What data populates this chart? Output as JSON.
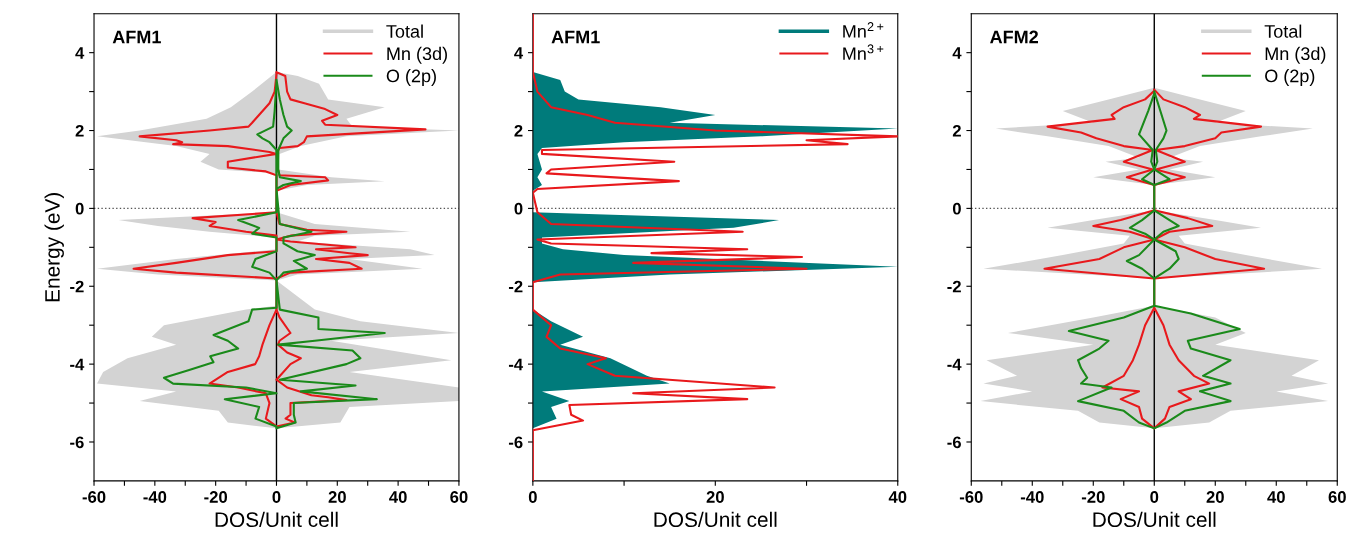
{
  "chart_data": [
    {
      "type": "line",
      "grid": false,
      "title": "AFM1",
      "xlabel": "DOS/Unit cell",
      "ylabel": "Energy (eV)",
      "xlim": [
        -60,
        60
      ],
      "ylim": [
        -7,
        5
      ],
      "xticks": [
        -60,
        {
          "value": -50,
          "label": null
        },
        -40,
        {
          "value": -30,
          "label": null
        },
        -20,
        {
          "value": -10,
          "label": null
        },
        0,
        {
          "value": 10,
          "label": null
        },
        20,
        {
          "value": 30,
          "label": null
        },
        40,
        {
          "value": 50,
          "label": null
        },
        60
      ],
      "yticks": [
        -6,
        {
          "value": -5,
          "label": null
        },
        -4,
        {
          "value": -3,
          "label": null
        },
        -2,
        {
          "value": -1,
          "label": null
        },
        0,
        {
          "value": 1,
          "label": null
        },
        2,
        {
          "value": 3,
          "label": null
        },
        4
      ],
      "legend": "top right",
      "ref_lines": [
        {
          "axis": "x",
          "value": 0,
          "color": "#000000",
          "line_style": "solid"
        },
        {
          "axis": "y",
          "value": 0,
          "color": "#555555",
          "line_style": "dotted"
        }
      ],
      "series": [
        {
          "name": "Total",
          "type": "area",
          "color": "#d3d3d3",
          "values": [
            3.5,
            3.4,
            3.2,
            2.8,
            2.6,
            2.3,
            2.1,
            2.0,
            1.85,
            1.6,
            1.4,
            1.0,
            0.8,
            0.7,
            0.6,
            0.45,
            -0.1,
            -0.4,
            -0.6,
            -0.7,
            -0.85,
            -1.05,
            -1.2,
            -1.3,
            -1.55,
            -1.7,
            -1.85,
            -2.6,
            -2.9,
            -3.2,
            -3.4,
            -3.9,
            -4.2,
            -4.6,
            -4.95,
            -5.1,
            -5.5,
            -5.65,
            -5.5,
            -5.2,
            -4.95,
            -4.7,
            -4.5,
            -4.2,
            -3.85,
            -3.5,
            -3.3,
            -3.0,
            -2.6,
            -2.5,
            -1.85,
            -1.7,
            -1.55,
            -1.3,
            -1.05,
            -0.75,
            -0.6,
            -0.45,
            -0.3,
            -0.1,
            0.9,
            1.0,
            1.2,
            1.4,
            1.6,
            1.85,
            2.0,
            2.3,
            2.6,
            3.0,
            3.5
          ],
          "x": [
            0,
            7,
            14,
            17,
            35.6,
            23,
            25,
            60,
            23,
            8,
            1,
            0.6,
            18,
            35.6,
            10,
            0,
            0,
            12.6,
            44,
            12.6,
            6.9,
            44,
            52,
            24,
            48,
            6.9,
            0,
            12.6,
            27.6,
            60,
            18,
            57.5,
            24,
            60,
            60,
            24,
            21,
            0,
            -16,
            -19,
            -45,
            -33,
            -59,
            -57,
            -49,
            -33,
            -41,
            -37,
            -10,
            0,
            0,
            -39,
            -59,
            -33,
            0,
            0,
            -22,
            -39,
            -52,
            0,
            0,
            -19,
            -25,
            -22,
            -33,
            -59,
            -45,
            -23,
            -15,
            -8,
            0
          ]
        },
        {
          "name": "Mn (3d)",
          "color": "#e8191c",
          "values": [
            3.5,
            3.4,
            3.0,
            2.8,
            2.7,
            2.55,
            2.4,
            2.25,
            2.15,
            2.03,
            1.85,
            1.7,
            1.6,
            1.55,
            1.4,
            1.0,
            0.85,
            0.8,
            0.72,
            0.6,
            0.45,
            -0.1,
            -0.4,
            -0.55,
            -0.6,
            -0.7,
            -0.8,
            -0.85,
            -1.0,
            -1.05,
            -1.15,
            -1.2,
            -1.3,
            -1.4,
            -1.55,
            -1.65,
            -1.8,
            -2.6,
            -2.8,
            -3.2,
            -3.4,
            -3.5,
            -3.7,
            -3.85,
            -4.0,
            -4.4,
            -4.6,
            -4.8,
            -4.85,
            -4.92,
            -5.0,
            -5.3,
            -5.4,
            -5.5,
            -5.6,
            -5.4,
            -5.0,
            -4.75,
            -4.6,
            -4.5,
            -4.2,
            -4.0,
            -3.8,
            -3.5,
            -3.0,
            -2.6,
            -1.8,
            -1.65,
            -1.55,
            -1.4,
            -1.2,
            -1.1,
            -0.7,
            -0.6,
            -0.45,
            -0.35,
            -0.25,
            -0.1,
            0.85,
            0.95,
            1.05,
            1.2,
            1.4,
            1.45,
            1.6,
            1.65,
            1.7,
            1.75,
            1.85,
            2.0,
            2.1,
            2.2,
            2.7,
            3.0,
            3.45
          ],
          "x": [
            0,
            2.9,
            3.5,
            4.6,
            9.2,
            16,
            20,
            15,
            16,
            49,
            10,
            9,
            7,
            1,
            0,
            0.5,
            1,
            16,
            17,
            4.6,
            0,
            0,
            1,
            10,
            23,
            4.6,
            0,
            4.6,
            26,
            13,
            24,
            30,
            13,
            24,
            28,
            4.6,
            0,
            0,
            1,
            4.6,
            1,
            0.5,
            3.5,
            8,
            4.6,
            0,
            3.5,
            11.5,
            17,
            23,
            4.6,
            4.6,
            3,
            6,
            0,
            -3.5,
            -2.3,
            -3.5,
            -12.6,
            -22,
            -16,
            -7,
            -5.7,
            -4.6,
            -2.3,
            0,
            0,
            -33,
            -47,
            -33,
            -16,
            0,
            0,
            -10,
            -22,
            -20,
            -27.6,
            0,
            0,
            -3.5,
            -16,
            -16,
            0,
            -2.3,
            -16,
            -34,
            -31,
            -33,
            -45,
            -22,
            -9.2,
            -8,
            -2.3,
            -0.6,
            0
          ]
        },
        {
          "name": "O (2p)",
          "color": "#1a8a1a",
          "values": [
            3.3,
            2.8,
            2.4,
            2.1,
            2.0,
            1.8,
            1.5,
            1.0,
            0.8,
            0.7,
            0.6,
            0.5,
            -0.4,
            -0.6,
            -0.75,
            -0.9,
            -1.1,
            -1.2,
            -1.35,
            -1.55,
            -1.65,
            -1.85,
            -2.6,
            -2.8,
            -3.1,
            -3.2,
            -3.4,
            -3.5,
            -3.65,
            -3.85,
            -4.0,
            -4.4,
            -4.55,
            -4.7,
            -4.9,
            -5.0,
            -5.3,
            -5.5,
            -5.65,
            -5.6,
            -5.4,
            -5.1,
            -4.9,
            -4.75,
            -4.6,
            -4.5,
            -4.35,
            -4.15,
            -3.95,
            -3.8,
            -3.6,
            -3.4,
            -3.25,
            -2.9,
            -2.6,
            -2.55,
            -1.85,
            -1.65,
            -1.5,
            -1.3,
            -1.1,
            -0.75,
            -0.65,
            -0.5,
            -0.3,
            -0.1,
            1.5,
            1.7,
            1.8,
            1.9,
            2.1,
            2.5,
            3.25
          ],
          "x": [
            0,
            1.1,
            2.3,
            3.5,
            5,
            2.3,
            0.6,
            0.6,
            1.1,
            8,
            2.3,
            0,
            1.1,
            11.5,
            2.3,
            2.3,
            6.9,
            12.6,
            5.7,
            10,
            2.3,
            0,
            1.1,
            13.8,
            13.8,
            35.6,
            12.6,
            0.6,
            25,
            27.6,
            23,
            1.1,
            26,
            8,
            33,
            5.7,
            5.7,
            6.3,
            0,
            0,
            -6.9,
            -5.7,
            -17,
            0,
            -10,
            -34,
            -37,
            -28.7,
            -20.7,
            -21.8,
            -12.6,
            -16,
            -20.7,
            -9.2,
            -8,
            0,
            0,
            -2.3,
            -8,
            -6.9,
            0,
            0,
            -8,
            -5.7,
            -12.6,
            0,
            0,
            -2.3,
            -4.6,
            -6.3,
            -1.1,
            -0.6,
            0
          ]
        }
      ]
    },
    {
      "type": "line",
      "grid": false,
      "title": "AFM1",
      "xlabel": "DOS/Unit cell",
      "xlim": [
        0,
        40
      ],
      "ylim": [
        -7,
        5
      ],
      "xticks": [
        0,
        {
          "value": 10,
          "label": null
        },
        20,
        {
          "value": 30,
          "label": null
        },
        40
      ],
      "yticks": [
        -6,
        {
          "value": -5,
          "label": null
        },
        -4,
        {
          "value": -3,
          "label": null
        },
        -2,
        {
          "value": -1,
          "label": null
        },
        0,
        {
          "value": 1,
          "label": null
        },
        2,
        {
          "value": 3,
          "label": null
        },
        4
      ],
      "legend": "top right",
      "ref_lines": [
        {
          "axis": "y",
          "value": 0,
          "color": "#555555",
          "line_style": "dotted"
        }
      ],
      "series": [
        {
          "name": "Mn$^{2+}$",
          "type": "area",
          "color": "#007b7b",
          "values": [
            3.5,
            3.3,
            3.0,
            2.8,
            2.6,
            2.4,
            2.2,
            2.05,
            1.85,
            1.7,
            1.55,
            1.4,
            1.0,
            0.8,
            0.6,
            0.45,
            -0.1,
            -0.3,
            -0.5,
            -0.75,
            -0.9,
            -1.05,
            -1.2,
            -1.5,
            -1.7,
            -1.9,
            -2.6,
            -2.9,
            -3.3,
            -3.5,
            -3.85,
            -4.3,
            -4.5,
            -4.7,
            -4.95,
            -5.1,
            -5.4,
            -5.65
          ],
          "x": [
            0,
            3,
            3.5,
            5,
            14,
            20,
            15,
            40,
            25,
            10,
            1,
            0.5,
            1,
            0.5,
            1,
            0,
            0,
            27,
            22,
            1,
            1,
            3.3,
            10,
            40,
            15,
            0,
            0,
            2,
            5.5,
            3,
            8.5,
            12.5,
            15,
            1,
            4,
            2,
            2.6,
            0
          ]
        },
        {
          "name": "Mn$^{3+}$",
          "color": "#e8191c",
          "values": [
            5,
            3.5,
            3.0,
            2.6,
            2.4,
            2.2,
            2.0,
            1.85,
            1.75,
            1.65,
            1.5,
            1.4,
            1.2,
            1.0,
            0.9,
            0.7,
            0.5,
            0.4,
            -0.1,
            -0.4,
            -0.6,
            -0.8,
            -0.9,
            -1.05,
            -1.15,
            -1.25,
            -1.4,
            -1.55,
            -1.7,
            -1.9,
            -2.6,
            -3.0,
            -3.3,
            -3.6,
            -3.85,
            -4.0,
            -4.3,
            -4.6,
            -4.75,
            -4.9,
            -5.05,
            -5.3,
            -5.45,
            -5.7,
            -7
          ],
          "x": [
            0,
            0,
            0.5,
            2,
            6,
            9,
            20,
            40,
            30,
            34.5,
            1,
            1,
            15.5,
            2,
            1.5,
            16,
            0.5,
            0,
            0.5,
            2,
            23,
            0.5,
            2,
            23.5,
            13,
            29.5,
            11,
            30,
            3,
            0,
            0,
            2,
            1.5,
            3,
            8,
            6,
            9,
            26.5,
            11,
            23.5,
            4,
            4.2,
            5.5,
            0,
            0
          ]
        }
      ]
    },
    {
      "type": "line",
      "grid": false,
      "title": "AFM2",
      "xlabel": "DOS/Unit cell",
      "xlim": [
        -60,
        60
      ],
      "ylim": [
        -7,
        5
      ],
      "xticks": [
        -60,
        {
          "value": -50,
          "label": null
        },
        -40,
        {
          "value": -30,
          "label": null
        },
        -20,
        {
          "value": -10,
          "label": null
        },
        0,
        {
          "value": 10,
          "label": null
        },
        20,
        {
          "value": 30,
          "label": null
        },
        40,
        {
          "value": 50,
          "label": null
        },
        60
      ],
      "yticks": [
        -6,
        {
          "value": -5,
          "label": null
        },
        -4,
        {
          "value": -3,
          "label": null
        },
        -2,
        {
          "value": -1,
          "label": null
        },
        0,
        {
          "value": 1,
          "label": null
        },
        2,
        {
          "value": 3,
          "label": null
        },
        4
      ],
      "legend": "top right",
      "ref_lines": [
        {
          "axis": "x",
          "value": 0,
          "color": "#000000",
          "line_style": "solid"
        },
        {
          "axis": "y",
          "value": 0,
          "color": "#555555",
          "line_style": "dotted"
        }
      ],
      "series": [
        {
          "name": "Total",
          "type": "area",
          "color": "#d3d3d3",
          "values": [
            3.1,
            2.8,
            2.5,
            2.2,
            2.05,
            1.85,
            1.6,
            1.3,
            1.2,
            1.0,
            0.8,
            0.6,
            -0.05,
            -0.3,
            -0.5,
            -0.7,
            -0.9,
            -1.2,
            -1.55,
            -1.8,
            -2.5,
            -2.8,
            -3.2,
            -3.5,
            -3.9,
            -4.3,
            -4.5,
            -4.7,
            -4.95,
            -5.2,
            -5.5,
            -5.65,
            -5.5,
            -5.2,
            -4.95,
            -4.7,
            -4.5,
            -4.3,
            -3.9,
            -3.5,
            -3.2,
            -2.8,
            -2.5,
            -1.8,
            -1.55,
            -1.2,
            -0.9,
            -0.7,
            -0.5,
            -0.3,
            -0.05,
            0.6,
            0.8,
            1.0,
            1.2,
            1.3,
            1.6,
            1.85,
            2.05,
            2.2,
            2.5,
            2.8,
            3.1
          ],
          "x": [
            0,
            15,
            30,
            20,
            52,
            35,
            15,
            5,
            16,
            5,
            20,
            0,
            0,
            20,
            35,
            8,
            10,
            30,
            55,
            0,
            0,
            20,
            30,
            20,
            54,
            45,
            57,
            40,
            57,
            25,
            18,
            0,
            -18,
            -25,
            -57,
            -40,
            -56,
            -45,
            -55,
            -20,
            -48,
            -20,
            0,
            0,
            -56,
            -30,
            -10,
            -8,
            -35,
            -20,
            0,
            0,
            -20,
            -5,
            -16,
            -5,
            -15,
            -35,
            -52,
            -20,
            -30,
            -15,
            0
          ]
        },
        {
          "name": "Mn (3d)",
          "color": "#e8191c",
          "values": [
            3.05,
            2.8,
            2.6,
            2.4,
            2.3,
            2.1,
            1.95,
            1.8,
            1.6,
            1.5,
            1.2,
            1.0,
            0.8,
            0.6,
            -0.05,
            -0.25,
            -0.45,
            -0.6,
            -0.8,
            -1.0,
            -1.3,
            -1.55,
            -1.8,
            -2.55,
            -3.0,
            -3.5,
            -3.9,
            -4.3,
            -4.5,
            -4.7,
            -4.9,
            -5.1,
            -5.4,
            -5.65,
            -5.4,
            -5.1,
            -4.9,
            -4.7,
            -4.6,
            -4.3,
            -3.9,
            -3.5,
            -3.0,
            -2.55,
            -1.8,
            -1.55,
            -1.3,
            -1.0,
            -0.8,
            -0.6,
            -0.45,
            -0.3,
            -0.05,
            0.6,
            0.8,
            1.0,
            1.2,
            1.5,
            1.6,
            1.8,
            1.95,
            2.1,
            2.3,
            2.4,
            2.6,
            2.8,
            3.02
          ],
          "x": [
            0,
            3,
            10,
            15,
            13,
            35,
            22,
            20,
            10,
            0.5,
            10,
            0.5,
            10,
            0,
            0,
            11,
            19,
            5,
            0,
            10,
            20,
            36,
            0,
            0,
            3,
            5,
            8,
            13,
            18,
            8,
            12,
            5,
            3.5,
            0,
            -4,
            -5,
            -11,
            -5,
            -17,
            -10,
            -7,
            -5,
            -3,
            0,
            0,
            -36,
            -18,
            -10,
            0,
            -8,
            -20,
            -11,
            0,
            0,
            -9,
            -0.5,
            -10,
            -0.5,
            -10,
            -19,
            -24,
            -35,
            -13,
            -14,
            -10,
            -3,
            0
          ]
        },
        {
          "name": "O (2p)",
          "color": "#1a8a1a",
          "values": [
            3.0,
            2.5,
            2.0,
            1.8,
            1.5,
            1.2,
            1.0,
            0.75,
            0.6,
            -0.05,
            -0.3,
            -0.45,
            -0.6,
            -0.8,
            -1.1,
            -1.3,
            -1.55,
            -1.8,
            -2.5,
            -2.7,
            -3.1,
            -3.4,
            -3.6,
            -3.9,
            -4.3,
            -4.5,
            -4.7,
            -4.95,
            -5.2,
            -5.5,
            -5.65,
            -5.5,
            -5.2,
            -4.95,
            -4.6,
            -4.5,
            -4.35,
            -4.1,
            -3.9,
            -3.6,
            -3.4,
            -3.15,
            -2.8,
            -2.5,
            -1.8,
            -1.55,
            -1.35,
            -1.2,
            -0.8,
            -0.65,
            -0.5,
            -0.3,
            -0.05,
            0.6,
            0.75,
            1.0,
            1.2,
            1.5,
            1.9,
            2.5,
            2.95
          ],
          "x": [
            0,
            2,
            4,
            3,
            0.5,
            1,
            0,
            5,
            0,
            0,
            5,
            8,
            3,
            0,
            7,
            8,
            5,
            0,
            0,
            12,
            28,
            11,
            12,
            25,
            16,
            25,
            15,
            25,
            10,
            4,
            0,
            -5,
            -10,
            -25,
            -14,
            -24,
            -22,
            -24,
            -25,
            -18,
            -15,
            -28,
            -10,
            0,
            0,
            -4,
            -9,
            -5,
            0,
            -3,
            -8,
            -4,
            0,
            0,
            -4,
            0,
            -1,
            -0.5,
            -5,
            -2,
            0
          ]
        }
      ]
    }
  ]
}
